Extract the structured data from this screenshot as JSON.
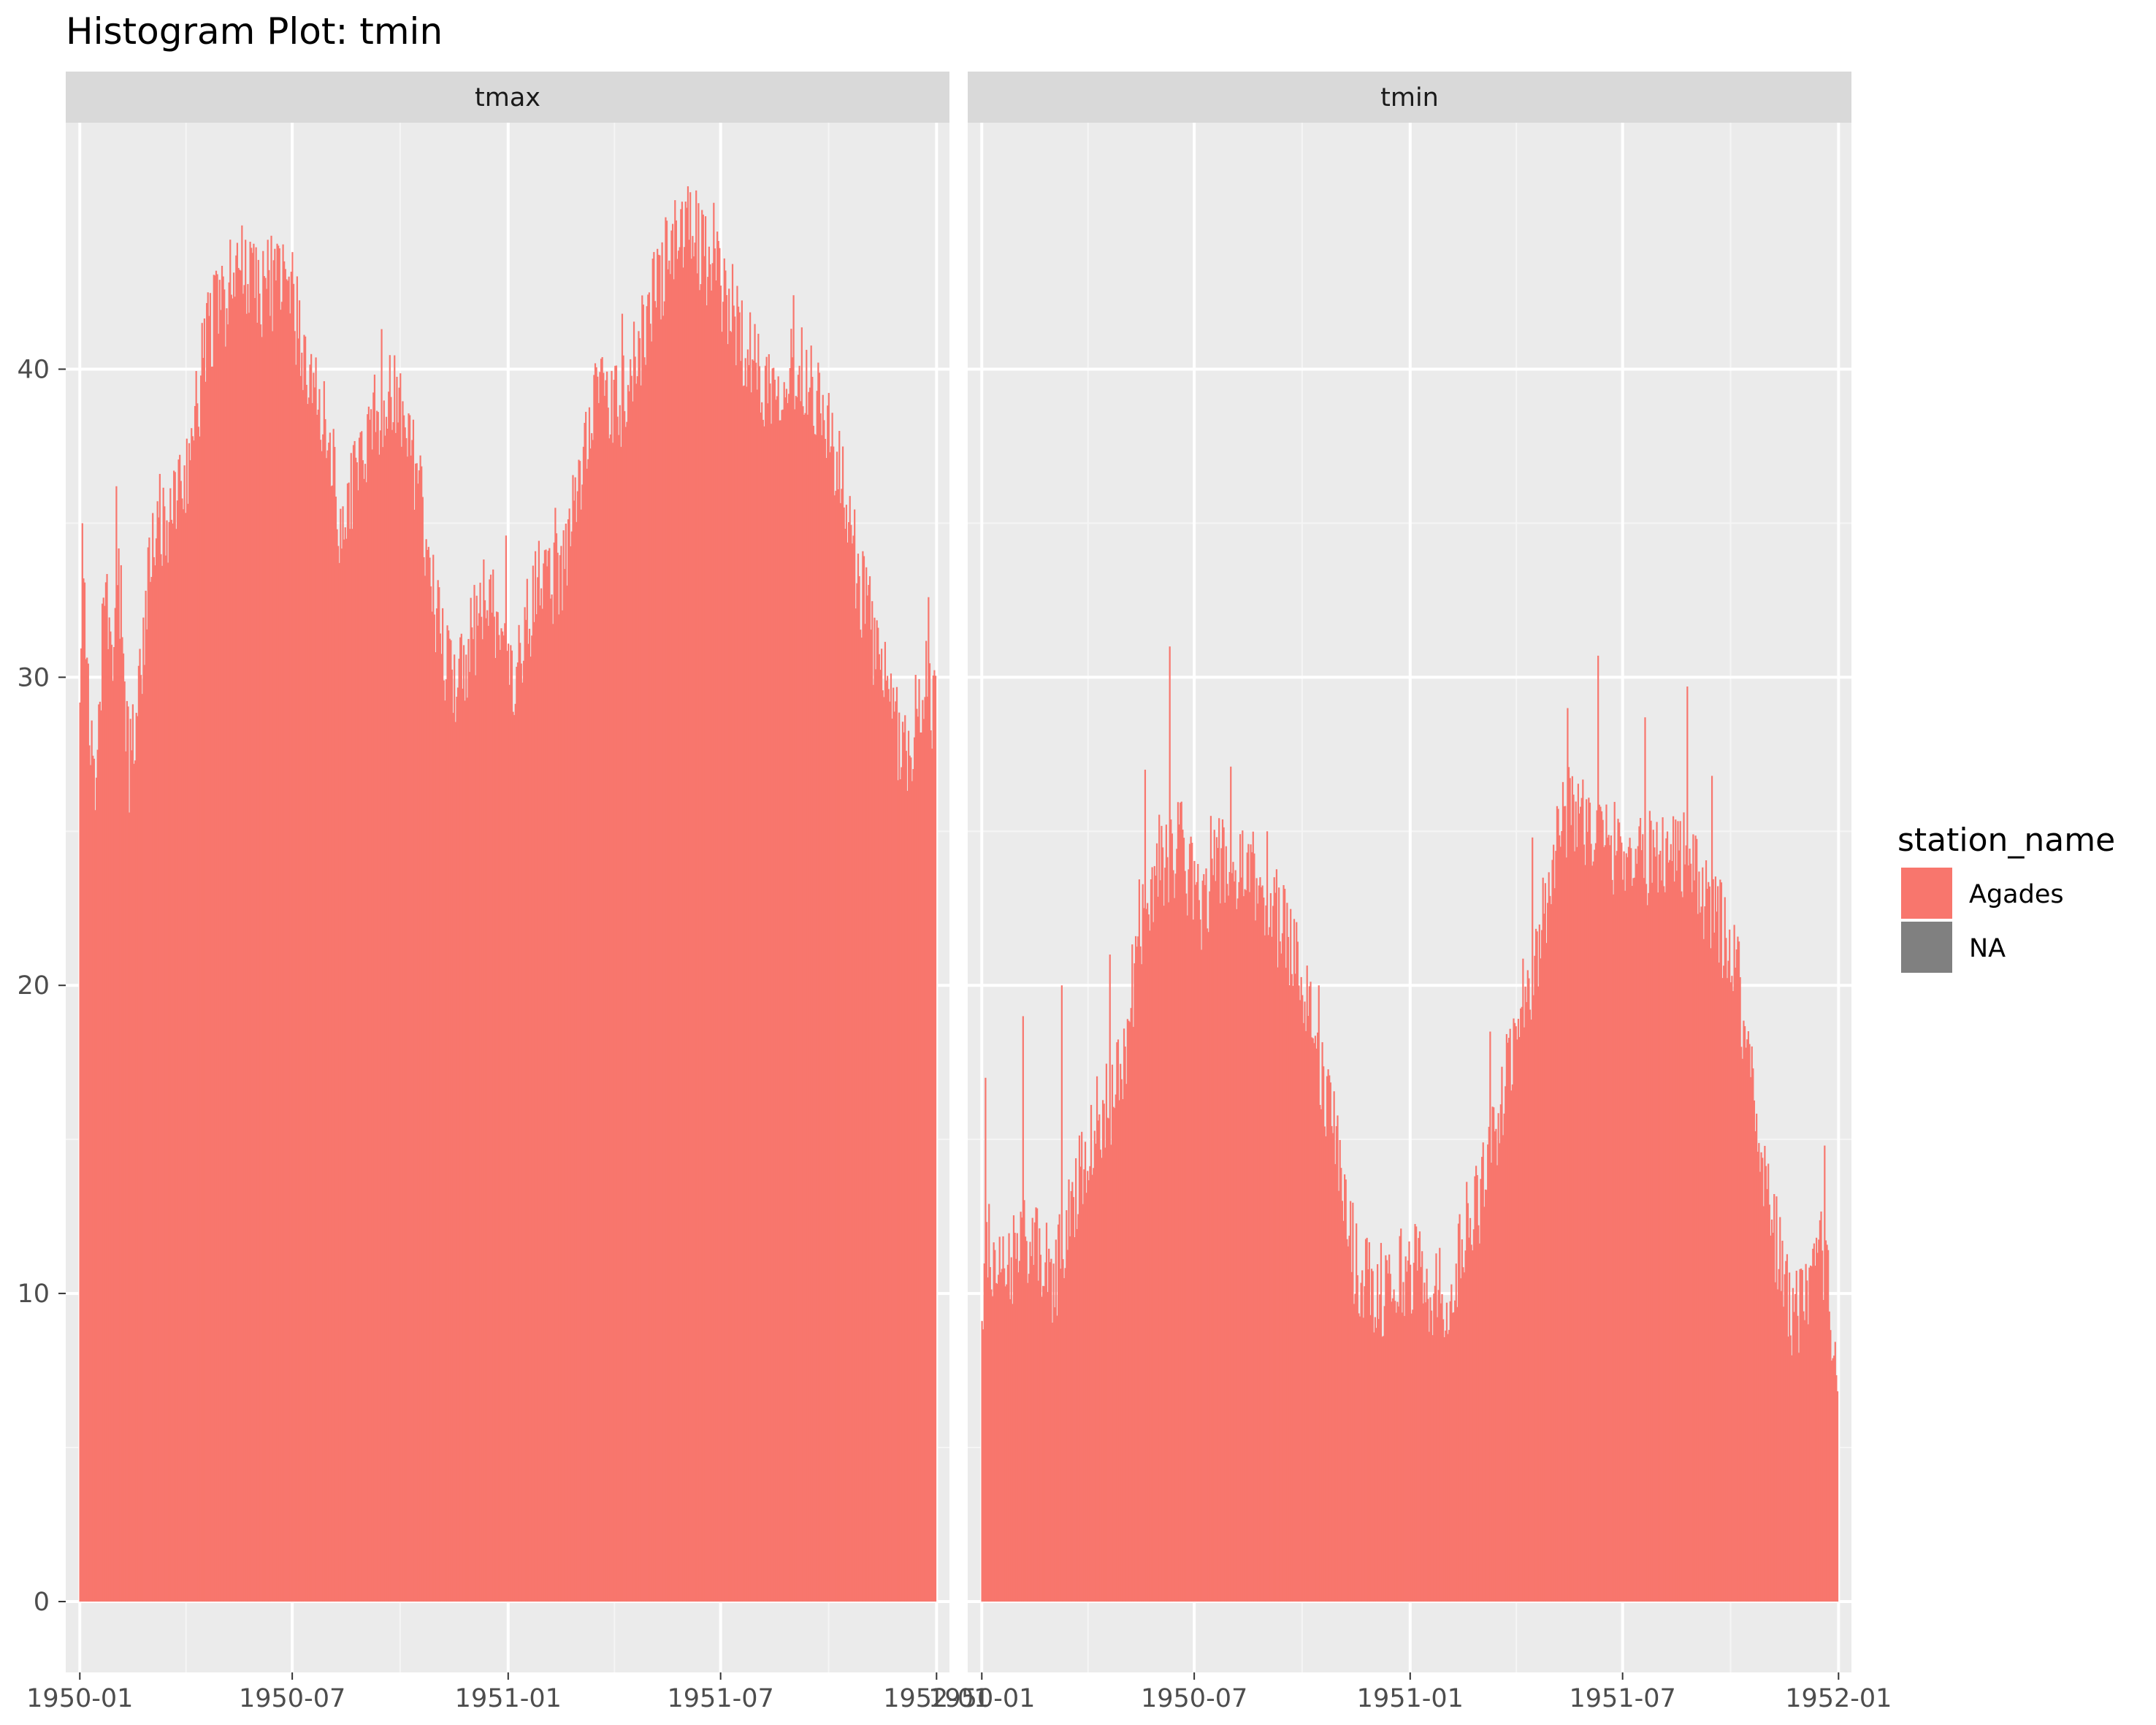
{
  "colors": {
    "panel_bg": "#EBEBEB",
    "grid_major": "#FFFFFF",
    "grid_minor": "#F5F5F5",
    "strip_bg": "#D9D9D9",
    "series_fill": "#F8766D",
    "na_fill": "#808080",
    "tick_color": "#333333"
  },
  "chart_data": {
    "type": "bar",
    "title": "Histogram Plot: tmin",
    "facet_by": "element",
    "facets": [
      "tmax",
      "tmin"
    ],
    "xlabel": "",
    "ylabel": "",
    "x_range": [
      "1949-12-20",
      "1952-01-12"
    ],
    "ylim": [
      -2.3,
      48
    ],
    "x_ticks": [
      "1950-01",
      "1950-07",
      "1951-01",
      "1951-07",
      "1952-01"
    ],
    "y_ticks": [
      0,
      10,
      20,
      30,
      40
    ],
    "grid": true,
    "legend": {
      "title": "station_name",
      "position": "right",
      "entries": [
        "Agades",
        "NA"
      ]
    },
    "series": [
      {
        "facet": "tmax",
        "station_name": "Agades",
        "anchors": [
          [
            "1950-01-01",
            30
          ],
          [
            "1950-01-03",
            34.8
          ],
          [
            "1950-01-06",
            32
          ],
          [
            "1950-01-10",
            27.5
          ],
          [
            "1950-01-15",
            25.5
          ],
          [
            "1950-01-22",
            33
          ],
          [
            "1950-01-28",
            30
          ],
          [
            "1950-02-03",
            33.5
          ],
          [
            "1950-02-12",
            27
          ],
          [
            "1950-02-20",
            29.5
          ],
          [
            "1950-03-01",
            33.5
          ],
          [
            "1950-03-15",
            35
          ],
          [
            "1950-04-01",
            36.5
          ],
          [
            "1950-04-12",
            39
          ],
          [
            "1950-04-20",
            41.5
          ],
          [
            "1950-05-01",
            42
          ],
          [
            "1950-05-20",
            43.5
          ],
          [
            "1950-06-05",
            42.5
          ],
          [
            "1950-06-20",
            43
          ],
          [
            "1950-07-05",
            41.5
          ],
          [
            "1950-07-15",
            39.5
          ],
          [
            "1950-08-01",
            38
          ],
          [
            "1950-08-12",
            34.5
          ],
          [
            "1950-08-25",
            37
          ],
          [
            "1950-09-10",
            38.5
          ],
          [
            "1950-09-25",
            39.5
          ],
          [
            "1950-10-10",
            37.5
          ],
          [
            "1950-10-25",
            34
          ],
          [
            "1950-11-05",
            31
          ],
          [
            "1950-11-15",
            30
          ],
          [
            "1950-11-30",
            31
          ],
          [
            "1950-12-10",
            32.5
          ],
          [
            "1950-12-25",
            32
          ],
          [
            "1951-01-05",
            29
          ],
          [
            "1951-01-15",
            31.5
          ],
          [
            "1951-02-01",
            33.5
          ],
          [
            "1951-02-15",
            33
          ],
          [
            "1951-03-01",
            36
          ],
          [
            "1951-03-15",
            39.5
          ],
          [
            "1951-04-01",
            38.5
          ],
          [
            "1951-04-15",
            39.5
          ],
          [
            "1951-05-01",
            42
          ],
          [
            "1951-05-20",
            44
          ],
          [
            "1951-06-01",
            44.5
          ],
          [
            "1951-06-20",
            43.5
          ],
          [
            "1951-07-10",
            42
          ],
          [
            "1951-07-25",
            40.5
          ],
          [
            "1951-08-10",
            39.5
          ],
          [
            "1951-08-25",
            40
          ],
          [
            "1951-09-10",
            40
          ],
          [
            "1951-09-25",
            39
          ],
          [
            "1951-10-10",
            36.5
          ],
          [
            "1951-10-25",
            33.5
          ],
          [
            "1951-11-10",
            31
          ],
          [
            "1951-11-25",
            28.5
          ],
          [
            "1951-12-10",
            27.5
          ],
          [
            "1951-12-20",
            30
          ],
          [
            "1951-12-31",
            29
          ]
        ],
        "spikes": [
          [
            "1950-01-03",
            35
          ],
          [
            "1950-02-01",
            36.2
          ],
          [
            "1950-03-10",
            36.6
          ],
          [
            "1950-04-15",
            41.5
          ],
          [
            "1950-05-22",
            44.2
          ],
          [
            "1950-06-10",
            44.2
          ],
          [
            "1950-07-01",
            43.8
          ],
          [
            "1950-09-15",
            41.3
          ],
          [
            "1950-12-12",
            32.5
          ],
          [
            "1950-12-30",
            34.6
          ],
          [
            "1951-02-10",
            35.5
          ],
          [
            "1951-04-08",
            41.8
          ],
          [
            "1951-05-20",
            44.5
          ],
          [
            "1951-06-10",
            45.8
          ],
          [
            "1951-06-25",
            45.4
          ],
          [
            "1951-09-01",
            42.4
          ],
          [
            "1951-12-25",
            32.6
          ]
        ]
      },
      {
        "facet": "tmin",
        "station_name": "Agades",
        "anchors": [
          [
            "1950-01-01",
            8.5
          ],
          [
            "1950-01-05",
            12
          ],
          [
            "1950-01-12",
            10
          ],
          [
            "1950-01-25",
            11
          ],
          [
            "1950-02-08",
            12
          ],
          [
            "1950-02-20",
            11
          ],
          [
            "1950-03-05",
            10.5
          ],
          [
            "1950-03-20",
            13
          ],
          [
            "1950-04-01",
            15
          ],
          [
            "1950-04-15",
            16
          ],
          [
            "1950-05-01",
            17
          ],
          [
            "1950-05-15",
            22
          ],
          [
            "1950-06-01",
            24
          ],
          [
            "1950-06-20",
            24.5
          ],
          [
            "1950-07-05",
            22.5
          ],
          [
            "1950-07-20",
            24
          ],
          [
            "1950-08-05",
            23.5
          ],
          [
            "1950-08-20",
            23.5
          ],
          [
            "1950-09-05",
            22.5
          ],
          [
            "1950-09-20",
            21.5
          ],
          [
            "1950-10-05",
            20
          ],
          [
            "1950-10-20",
            16.5
          ],
          [
            "1950-11-01",
            14.5
          ],
          [
            "1950-11-15",
            11
          ],
          [
            "1950-12-01",
            10
          ],
          [
            "1950-12-20",
            10.5
          ],
          [
            "1951-01-05",
            11
          ],
          [
            "1951-01-20",
            10
          ],
          [
            "1951-02-05",
            10
          ],
          [
            "1951-02-20",
            12.5
          ],
          [
            "1951-03-05",
            13.5
          ],
          [
            "1951-03-20",
            16
          ],
          [
            "1951-04-05",
            19.5
          ],
          [
            "1951-04-20",
            21
          ],
          [
            "1951-05-05",
            25
          ],
          [
            "1951-05-20",
            26
          ],
          [
            "1951-06-05",
            25
          ],
          [
            "1951-06-20",
            24.5
          ],
          [
            "1951-07-05",
            24.5
          ],
          [
            "1951-07-20",
            24
          ],
          [
            "1951-08-05",
            24.5
          ],
          [
            "1951-08-20",
            24.5
          ],
          [
            "1951-09-05",
            23
          ],
          [
            "1951-09-20",
            22
          ],
          [
            "1951-10-05",
            21
          ],
          [
            "1951-10-20",
            16.5
          ],
          [
            "1951-11-05",
            12.5
          ],
          [
            "1951-11-20",
            9.5
          ],
          [
            "1951-12-05",
            9.5
          ],
          [
            "1951-12-20",
            11.5
          ],
          [
            "1951-12-31",
            7.5
          ]
        ],
        "spikes": [
          [
            "1950-01-04",
            17
          ],
          [
            "1950-02-05",
            19
          ],
          [
            "1950-03-10",
            20
          ],
          [
            "1950-04-20",
            21
          ],
          [
            "1950-05-20",
            27
          ],
          [
            "1950-06-10",
            31
          ],
          [
            "1950-07-15",
            25.5
          ],
          [
            "1950-08-01",
            27.1
          ],
          [
            "1950-09-01",
            25
          ],
          [
            "1950-10-15",
            20
          ],
          [
            "1951-03-10",
            18.5
          ],
          [
            "1951-04-15",
            24.8
          ],
          [
            "1951-05-15",
            29
          ],
          [
            "1951-06-10",
            30.7
          ],
          [
            "1951-07-20",
            28.7
          ],
          [
            "1951-08-25",
            29.7
          ],
          [
            "1951-09-15",
            26.8
          ],
          [
            "1951-12-20",
            14.8
          ]
        ]
      }
    ]
  }
}
